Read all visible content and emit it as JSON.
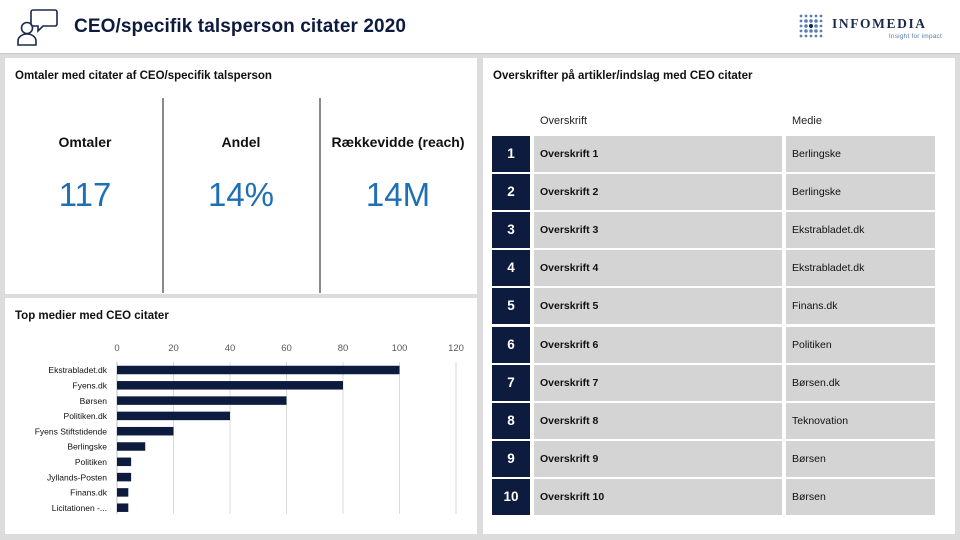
{
  "header": {
    "title": "CEO/specifik talsperson  citater 2020",
    "icon": "speech-person-icon",
    "logo": {
      "name": "INFOMEDIA",
      "tagline": "Insight for impact"
    }
  },
  "kpi_panel": {
    "title": "Omtaler med citater af CEO/specifik talsperson",
    "items": [
      {
        "label": "Omtaler",
        "value": "117"
      },
      {
        "label": "Andel",
        "value": "14%"
      },
      {
        "label": "Rækkevidde (reach)",
        "value": "14M"
      }
    ]
  },
  "chart_panel": {
    "title": "Top medier med CEO citater"
  },
  "chart_data": {
    "type": "bar",
    "orientation": "horizontal",
    "categories": [
      "Ekstrabladet.dk",
      "Fyens.dk",
      "Børsen",
      "Politiken.dk",
      "Fyens Stiftstidende",
      "Berlingske",
      "Politiken",
      "Jyllands-Posten",
      "Finans.dk",
      "Licitationen -..."
    ],
    "values": [
      100,
      80,
      60,
      40,
      20,
      10,
      5,
      5,
      4,
      4
    ],
    "xlim": [
      0,
      120
    ],
    "xticks": [
      0,
      20,
      40,
      60,
      80,
      100,
      120
    ],
    "xaxis_position": "top",
    "grid": true,
    "bar_color": "#0d1b3e"
  },
  "table_panel": {
    "title": "Overskrifter på artikler/indslag med CEO citater",
    "headers": {
      "headline": "Overskrift",
      "media": "Medie"
    },
    "rows": [
      {
        "num": "1",
        "headline": "Overskrift 1",
        "media": "Berlingske"
      },
      {
        "num": "2",
        "headline": "Overskrift 2",
        "media": "Berlingske"
      },
      {
        "num": "3",
        "headline": "Overskrift 3",
        "media": "Ekstrabladet.dk"
      },
      {
        "num": "4",
        "headline": "Overskrift 4",
        "media": "Ekstrabladet.dk"
      },
      {
        "num": "5",
        "headline": "Overskrift 5",
        "media": "Finans.dk"
      },
      {
        "num": "6",
        "headline": "Overskrift 6",
        "media": "Politiken"
      },
      {
        "num": "7",
        "headline": "Overskrift 7",
        "media": "Børsen.dk"
      },
      {
        "num": "8",
        "headline": "Overskrift 8",
        "media": "Teknovation"
      },
      {
        "num": "9",
        "headline": "Overskrift 9",
        "media": "Børsen"
      },
      {
        "num": "10",
        "headline": "Overskrift 10",
        "media": "Børsen"
      }
    ]
  },
  "colors": {
    "accent": "#1f6fb5",
    "dark_navy": "#0d1b3e",
    "cell_gray": "#d4d4d4"
  }
}
